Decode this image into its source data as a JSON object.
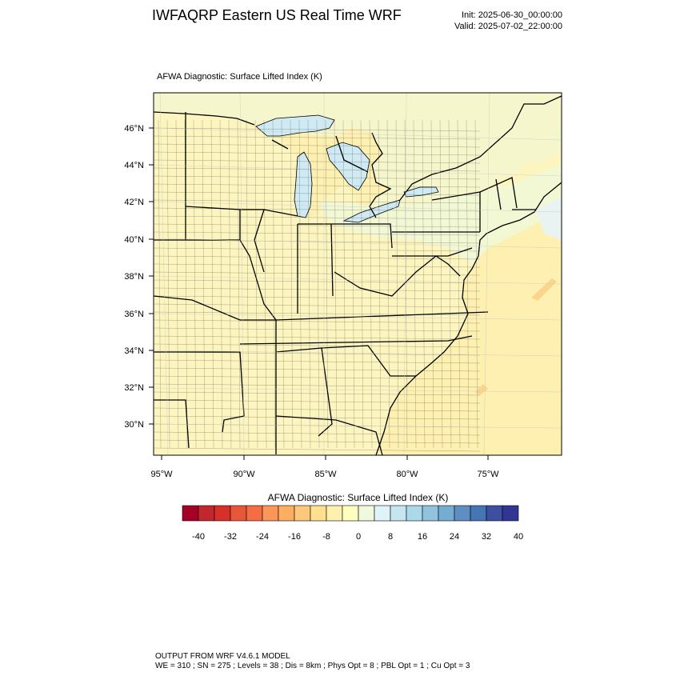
{
  "header": {
    "title": "IWFAQRP Eastern US Real Time WRF",
    "init": "Init: 2025-06-30_00:00:00",
    "valid": "Valid: 2025-07-02_22:00:00"
  },
  "map": {
    "field_title": "AFWA Diagnostic: Surface Lifted Index   (K)",
    "lat_labels": [
      "30°N",
      "32°N",
      "34°N",
      "36°N",
      "38°N",
      "40°N",
      "42°N",
      "44°N",
      "46°N"
    ],
    "lon_labels": [
      "95°W",
      "90°W",
      "85°W",
      "80°W",
      "75°W"
    ],
    "colors": {
      "land_fill": "#fdf5c0",
      "ocean_fill": "#fdf0b0",
      "lake_fill": "#cfeaf3",
      "light_green": "#f4fad8",
      "border": "#000000"
    },
    "boundaries": [
      "state",
      "county"
    ]
  },
  "colorbar": {
    "title": "AFWA Diagnostic: Surface Lifted Index  (K)",
    "tick_labels": [
      "-40",
      "-32",
      "-24",
      "-16",
      "-8",
      "0",
      "8",
      "16",
      "24",
      "32",
      "40"
    ],
    "colors": [
      "#a50026",
      "#c1272d",
      "#d73027",
      "#e9573a",
      "#f46d43",
      "#f99658",
      "#fdae61",
      "#fec87a",
      "#fee090",
      "#fef1ae",
      "#ffffbf",
      "#eef9dd",
      "#e0f3f8",
      "#c5e6f0",
      "#abd9e9",
      "#91c3de",
      "#74add1",
      "#5e8fc2",
      "#4575b4",
      "#3e4fa1",
      "#313695"
    ]
  },
  "footer": {
    "line1": "OUTPUT FROM WRF V4.6.1 MODEL",
    "line2": "WE = 310 ; SN = 275 ; Levels = 38 ; Dis = 8km ; Phys Opt = 8 ; PBL Opt = 1 ; Cu Opt = 3"
  }
}
